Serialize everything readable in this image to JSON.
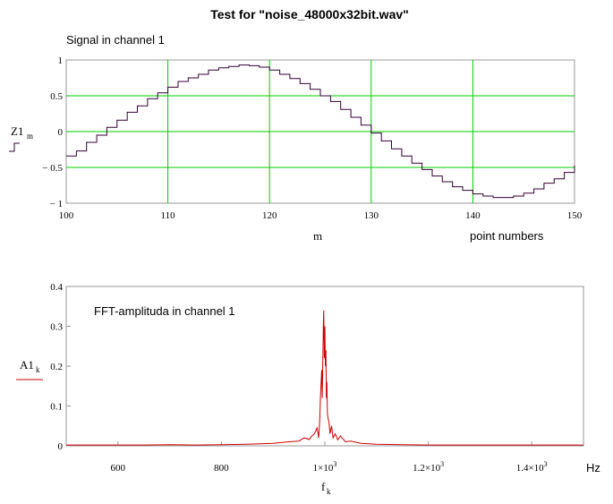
{
  "page": {
    "title": "Test  for  \"noise_48000x32bit.wav\""
  },
  "chart_data": [
    {
      "type": "line",
      "style": "step",
      "annotation": "Signal in channel 1",
      "x_unit_label": "point numbers",
      "xlabel": "m",
      "ylabel": "Z1",
      "ylabel_sub": "m",
      "xlim": [
        100,
        150
      ],
      "ylim": [
        -1,
        1
      ],
      "x_ticks": [
        "100",
        "110",
        "120",
        "130",
        "140",
        "150"
      ],
      "y_ticks": [
        "1",
        "0.5",
        "0",
        "− 0.5",
        "− 1"
      ],
      "grid": true,
      "grid_color": "#00cc00",
      "series": [
        {
          "color": "#330033",
          "x": [
            100,
            101,
            102,
            103,
            104,
            105,
            106,
            107,
            108,
            109,
            110,
            111,
            112,
            113,
            114,
            115,
            116,
            117,
            118,
            119,
            120,
            121,
            122,
            123,
            124,
            125,
            126,
            127,
            128,
            129,
            130,
            131,
            132,
            133,
            134,
            135,
            136,
            137,
            138,
            139,
            140,
            141,
            142,
            143,
            144,
            145,
            146,
            147,
            148,
            149,
            150
          ],
          "values": [
            -0.34,
            -0.27,
            -0.15,
            -0.05,
            0.06,
            0.16,
            0.27,
            0.36,
            0.46,
            0.54,
            0.62,
            0.7,
            0.75,
            0.8,
            0.86,
            0.89,
            0.91,
            0.93,
            0.92,
            0.9,
            0.86,
            0.8,
            0.74,
            0.67,
            0.59,
            0.5,
            0.42,
            0.31,
            0.2,
            0.09,
            -0.02,
            -0.13,
            -0.24,
            -0.34,
            -0.44,
            -0.53,
            -0.62,
            -0.7,
            -0.77,
            -0.82,
            -0.87,
            -0.9,
            -0.92,
            -0.92,
            -0.9,
            -0.86,
            -0.8,
            -0.72,
            -0.66,
            -0.57,
            -0.47
          ]
        }
      ]
    },
    {
      "type": "line",
      "annotation": "FFT-amplituda  in channel 1",
      "x_unit_label": "Hz",
      "xlabel": "f",
      "xlabel_sub": "k",
      "ylabel": "A1",
      "ylabel_sub": "k",
      "xlim": [
        500,
        1500
      ],
      "ylim": [
        0,
        0.4
      ],
      "x_ticks": [
        {
          "value": 600,
          "label": "600"
        },
        {
          "value": 800,
          "label": "800"
        },
        {
          "value": 1000,
          "label": "1×10",
          "exp": "3"
        },
        {
          "value": 1200,
          "label": "1.2×10",
          "exp": "3"
        },
        {
          "value": 1400,
          "label": "1.4×10",
          "exp": "3"
        }
      ],
      "y_ticks": [
        "0.4",
        "0.3",
        "0.2",
        "0.1",
        "0"
      ],
      "grid": false,
      "series": [
        {
          "color": "#cc0000",
          "x": [
            500,
            550,
            600,
            650,
            700,
            750,
            800,
            850,
            900,
            930,
            950,
            960,
            970,
            975,
            980,
            985,
            988,
            990,
            992,
            994,
            995,
            996,
            997,
            998,
            999,
            1000,
            1001,
            1002,
            1003,
            1004,
            1005,
            1006,
            1008,
            1010,
            1013,
            1016,
            1020,
            1025,
            1030,
            1040,
            1050,
            1070,
            1100,
            1150,
            1200,
            1300,
            1400,
            1500
          ],
          "values": [
            0.002,
            0.002,
            0.002,
            0.002,
            0.003,
            0.002,
            0.003,
            0.004,
            0.006,
            0.01,
            0.012,
            0.02,
            0.016,
            0.025,
            0.03,
            0.045,
            0.02,
            0.06,
            0.14,
            0.19,
            0.12,
            0.21,
            0.3,
            0.34,
            0.22,
            0.3,
            0.2,
            0.24,
            0.12,
            0.16,
            0.08,
            0.07,
            0.06,
            0.03,
            0.05,
            0.02,
            0.03,
            0.015,
            0.025,
            0.01,
            0.012,
            0.006,
            0.004,
            0.003,
            0.002,
            0.002,
            0.002,
            0.002
          ]
        }
      ]
    }
  ]
}
